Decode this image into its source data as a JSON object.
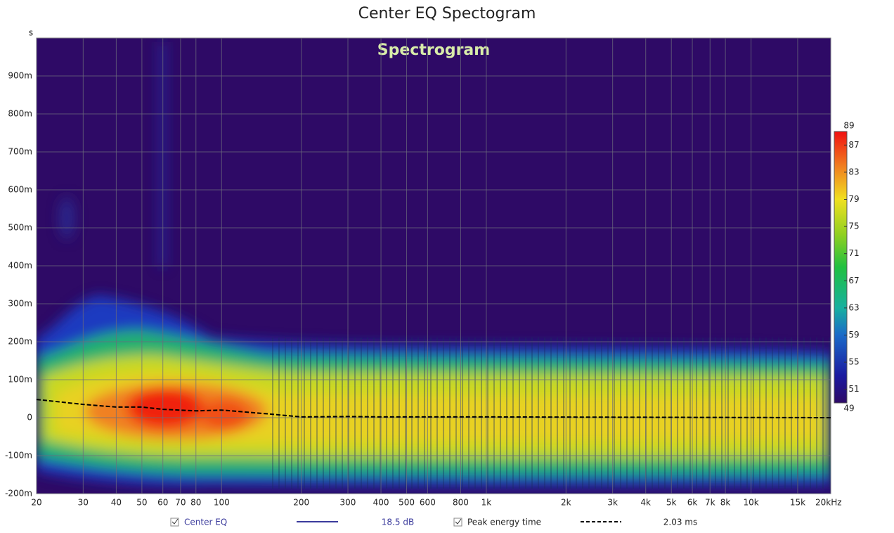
{
  "chart_data": {
    "type": "spectrogram",
    "title": "Center EQ Spectogram",
    "subtitle": "Spectrogram",
    "y_unit": "s",
    "xlog": true,
    "grid": true,
    "xlim": [
      20,
      20000
    ],
    "xticks": [
      20,
      30,
      40,
      50,
      60,
      70,
      80,
      100,
      200,
      300,
      400,
      500,
      600,
      800,
      {
        "value": 1000,
        "label": "1k"
      },
      {
        "value": 2000,
        "label": "2k"
      },
      {
        "value": 3000,
        "label": "3k"
      },
      {
        "value": 4000,
        "label": "4k"
      },
      {
        "value": 5000,
        "label": "5k"
      },
      {
        "value": 6000,
        "label": "6k"
      },
      {
        "value": 7000,
        "label": "7k"
      },
      {
        "value": 8000,
        "label": "8k"
      },
      {
        "value": 10000,
        "label": "10k"
      },
      {
        "value": 15000,
        "label": "15k"
      },
      {
        "value": 20000,
        "label": "20kHz"
      }
    ],
    "ylim": [
      -0.2,
      1.0
    ],
    "yticks": [
      {
        "value": -0.2,
        "label": "-200m"
      },
      {
        "value": -0.1,
        "label": "-100m"
      },
      0,
      {
        "value": 0.1,
        "label": "100m"
      },
      {
        "value": 0.2,
        "label": "200m"
      },
      {
        "value": 0.3,
        "label": "300m"
      },
      {
        "value": 0.4,
        "label": "400m"
      },
      {
        "value": 0.5,
        "label": "500m"
      },
      {
        "value": 0.6,
        "label": "600m"
      },
      {
        "value": 0.7,
        "label": "700m"
      },
      {
        "value": 0.8,
        "label": "800m"
      },
      {
        "value": 0.9,
        "label": "900m"
      }
    ],
    "spectrogram": {
      "name": "Center EQ",
      "color": "#3b3b9c",
      "readout": "18.5 dB"
    },
    "colorbar": {
      "lim": [
        49,
        89
      ],
      "ticks": [
        49,
        51,
        55,
        59,
        63,
        67,
        71,
        75,
        79,
        83,
        87,
        89
      ]
    },
    "series": [
      {
        "name": "Peak energy time",
        "color": "#000000",
        "readout": "2.03 ms",
        "x": [
          20,
          30,
          40,
          50,
          60,
          80,
          100,
          150,
          200,
          300,
          400,
          1000,
          5000,
          20000
        ],
        "values": [
          0.048,
          0.035,
          0.028,
          0.028,
          0.022,
          0.018,
          0.02,
          0.01,
          0.002,
          0.003,
          0.002,
          0.002,
          0.001,
          0.0
        ]
      }
    ]
  }
}
